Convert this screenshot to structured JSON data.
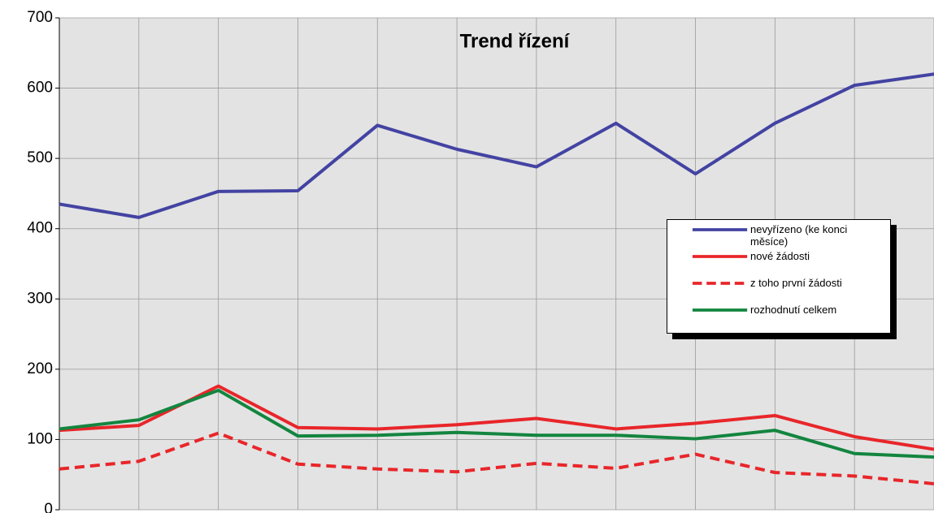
{
  "chart_data": {
    "type": "line",
    "title": "Trend řízení",
    "categories": [
      null,
      null,
      null,
      null,
      null,
      null,
      null,
      null,
      null,
      null,
      null,
      null
    ],
    "series": [
      {
        "name": "nevyřízeno (ke konci měsíce)",
        "color": "#4343a3",
        "dashed": false,
        "values": [
          435,
          416,
          453,
          454,
          547,
          513,
          488,
          550,
          478,
          550,
          604,
          620
        ]
      },
      {
        "name": "nové žádosti",
        "color": "#e8262a",
        "dashed": false,
        "values": [
          113,
          120,
          176,
          117,
          115,
          121,
          130,
          115,
          123,
          134,
          104,
          86
        ]
      },
      {
        "name": "z toho první žádosti",
        "color": "#e8262a",
        "dashed": true,
        "values": [
          58,
          69,
          109,
          65,
          58,
          54,
          66,
          59,
          79,
          53,
          48,
          37
        ]
      },
      {
        "name": "rozhodnutí celkem",
        "color": "#13853f",
        "dashed": false,
        "values": [
          115,
          128,
          170,
          105,
          106,
          110,
          106,
          106,
          101,
          113,
          80,
          75
        ]
      }
    ],
    "ylim": [
      0,
      700
    ],
    "yticks": [
      0,
      100,
      200,
      300,
      400,
      500,
      600,
      700
    ],
    "grid": true
  }
}
